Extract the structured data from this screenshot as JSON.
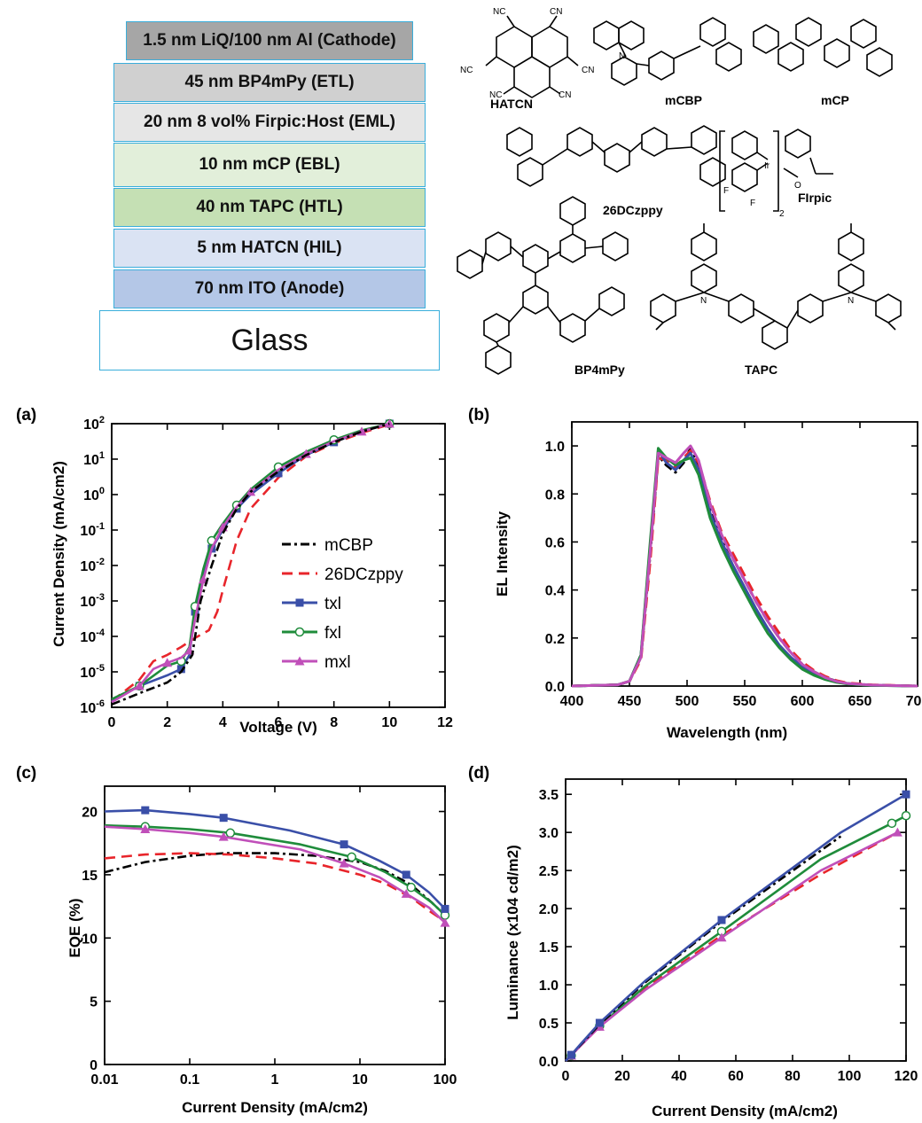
{
  "stack": {
    "layers": [
      {
        "label": "1.5 nm LiQ/100 nm Al (Cathode)",
        "color": "#a6a6a6"
      },
      {
        "label": "45 nm BP4mPy (ETL)",
        "color": "#d0d0d0"
      },
      {
        "label": "20 nm 8 vol% Firpic:Host (EML)",
        "color": "#e6e6e6"
      },
      {
        "label": "10 nm mCP (EBL)",
        "color": "#e2efda"
      },
      {
        "label": "40 nm TAPC (HTL)",
        "color": "#c5e0b4"
      },
      {
        "label": "5 nm HATCN (HIL)",
        "color": "#dae3f3"
      },
      {
        "label": "70 nm ITO (Anode)",
        "color": "#b4c7e7"
      },
      {
        "label": "Glass",
        "color": "#ffffff"
      }
    ]
  },
  "molecules": {
    "names": [
      "HATCN",
      "mCBP",
      "mCP",
      "26DCzppy",
      "FIrpic",
      "BP4mPy",
      "TAPC"
    ],
    "atom_labels": {
      "nc": "NC",
      "cn": "CN",
      "n": "N",
      "ir": "Ir",
      "f": "F",
      "o": "O",
      "sub2": "2"
    }
  },
  "legend_a": [
    "mCBP",
    "26DCzppy",
    "txl",
    "fxl",
    "mxl"
  ],
  "colors": {
    "mCBP": "#000000",
    "26DCzppy": "#e8252b",
    "txl": "#3a4fa8",
    "fxl": "#1f8c3b",
    "mxl": "#c04fb9"
  },
  "chart_data": [
    {
      "panel": "(a)",
      "type": "line",
      "xlabel": "Voltage (V)",
      "ylabel": "Current Density (mA/cm2)",
      "xlim": [
        0,
        12
      ],
      "ylim_log10": [
        -6,
        2
      ],
      "yscale": "log",
      "xticks": [
        "0",
        "2",
        "4",
        "6",
        "8",
        "10",
        "12"
      ],
      "yticks": [
        "10-6",
        "10-5",
        "10-4",
        "10-3",
        "10-2",
        "10-1",
        "100",
        "101",
        "102"
      ],
      "series": [
        {
          "name": "mCBP",
          "x": [
            0,
            1,
            2,
            2.5,
            2.9,
            3.2,
            3.6,
            4,
            4.5,
            5,
            6,
            7,
            8,
            9,
            10
          ],
          "y": [
            1.2e-06,
            2.5e-06,
            5e-06,
            1e-05,
            3e-05,
            0.001,
            0.01,
            0.08,
            0.4,
            1.2,
            4.5,
            13,
            30,
            60,
            100
          ]
        },
        {
          "name": "26DCzppy",
          "x": [
            0,
            1,
            1.5,
            2,
            2.5,
            3,
            3.5,
            3.8,
            4,
            4.5,
            5,
            6,
            7,
            8,
            9,
            10
          ],
          "y": [
            1.5e-06,
            6e-06,
            2e-05,
            3e-05,
            5e-05,
            9e-05,
            0.00015,
            0.0005,
            0.002,
            0.05,
            0.4,
            3,
            12,
            28,
            55,
            95
          ]
        },
        {
          "name": "txl",
          "x": [
            0,
            1,
            2,
            2.5,
            2.8,
            3,
            3.3,
            3.6,
            4,
            4.5,
            5,
            6,
            7,
            8,
            9,
            10
          ],
          "y": [
            1.5e-06,
            4e-06,
            8e-06,
            1.2e-05,
            3e-05,
            0.0005,
            0.005,
            0.03,
            0.1,
            0.4,
            1,
            4,
            13,
            30,
            60,
            100
          ]
        },
        {
          "name": "fxl",
          "x": [
            0,
            1,
            2,
            2.5,
            2.8,
            3,
            3.3,
            3.6,
            4,
            4.5,
            5,
            6,
            7,
            8,
            9,
            10
          ],
          "y": [
            1.7e-06,
            4e-06,
            1.5e-05,
            2e-05,
            5e-05,
            0.0007,
            0.008,
            0.05,
            0.15,
            0.5,
            1.4,
            6,
            16,
            35,
            65,
            100
          ]
        },
        {
          "name": "mxl",
          "x": [
            0,
            1,
            1.5,
            2,
            2.5,
            2.8,
            3,
            3.3,
            3.6,
            4,
            4.5,
            5,
            6,
            7,
            8,
            9,
            10
          ],
          "y": [
            1.4e-06,
            4e-06,
            1.2e-05,
            1.8e-05,
            2.5e-05,
            4e-05,
            0.0003,
            0.004,
            0.03,
            0.12,
            0.45,
            1.2,
            5,
            14,
            32,
            60,
            100
          ]
        }
      ]
    },
    {
      "panel": "(b)",
      "type": "line",
      "xlabel": "Wavelength (nm)",
      "ylabel": "EL Intensity",
      "xlim": [
        400,
        700
      ],
      "ylim": [
        0,
        1.1
      ],
      "xticks": [
        "400",
        "450",
        "500",
        "550",
        "600",
        "650",
        "700"
      ],
      "yticks": [
        "0.0",
        "0.2",
        "0.4",
        "0.6",
        "0.8",
        "1.0"
      ],
      "series": [
        {
          "name": "mCBP",
          "x": [
            400,
            440,
            450,
            460,
            468,
            475,
            482,
            490,
            497,
            503,
            510,
            520,
            530,
            540,
            550,
            560,
            570,
            580,
            590,
            600,
            610,
            620,
            630,
            640,
            660,
            700
          ],
          "y": [
            0,
            0.005,
            0.02,
            0.12,
            0.55,
            0.96,
            0.92,
            0.89,
            0.93,
            0.99,
            0.92,
            0.75,
            0.62,
            0.53,
            0.44,
            0.35,
            0.27,
            0.2,
            0.14,
            0.09,
            0.06,
            0.035,
            0.02,
            0.01,
            0.004,
            0
          ]
        },
        {
          "name": "26DCzppy",
          "x": [
            400,
            440,
            450,
            460,
            468,
            475,
            482,
            490,
            497,
            503,
            510,
            520,
            530,
            540,
            550,
            560,
            570,
            580,
            590,
            600,
            610,
            620,
            630,
            640,
            660,
            700
          ],
          "y": [
            0,
            0.005,
            0.02,
            0.11,
            0.52,
            0.95,
            0.94,
            0.91,
            0.95,
            0.98,
            0.93,
            0.77,
            0.64,
            0.55,
            0.46,
            0.37,
            0.29,
            0.22,
            0.15,
            0.1,
            0.065,
            0.04,
            0.022,
            0.012,
            0.005,
            0
          ]
        },
        {
          "name": "txl",
          "x": [
            400,
            440,
            450,
            460,
            468,
            475,
            482,
            490,
            497,
            503,
            510,
            520,
            530,
            540,
            550,
            560,
            570,
            580,
            590,
            600,
            610,
            620,
            630,
            640,
            660,
            700
          ],
          "y": [
            0,
            0.005,
            0.02,
            0.13,
            0.58,
            0.98,
            0.93,
            0.9,
            0.94,
            0.97,
            0.9,
            0.72,
            0.6,
            0.5,
            0.41,
            0.32,
            0.24,
            0.17,
            0.12,
            0.08,
            0.05,
            0.03,
            0.017,
            0.009,
            0.003,
            0
          ]
        },
        {
          "name": "fxl",
          "x": [
            400,
            440,
            450,
            460,
            468,
            475,
            482,
            490,
            497,
            503,
            510,
            520,
            530,
            540,
            550,
            560,
            570,
            580,
            590,
            600,
            610,
            620,
            630,
            640,
            660,
            700
          ],
          "y": [
            0,
            0.005,
            0.02,
            0.13,
            0.6,
            0.99,
            0.95,
            0.92,
            0.94,
            0.95,
            0.88,
            0.7,
            0.58,
            0.48,
            0.39,
            0.3,
            0.22,
            0.16,
            0.11,
            0.07,
            0.045,
            0.027,
            0.015,
            0.008,
            0.003,
            0
          ]
        },
        {
          "name": "mxl",
          "x": [
            400,
            440,
            450,
            460,
            468,
            475,
            482,
            490,
            497,
            503,
            510,
            520,
            530,
            540,
            550,
            560,
            570,
            580,
            590,
            600,
            610,
            620,
            630,
            640,
            660,
            700
          ],
          "y": [
            0,
            0.005,
            0.02,
            0.12,
            0.56,
            0.97,
            0.95,
            0.93,
            0.97,
            1.0,
            0.94,
            0.76,
            0.63,
            0.53,
            0.44,
            0.35,
            0.27,
            0.2,
            0.14,
            0.09,
            0.06,
            0.035,
            0.019,
            0.01,
            0.004,
            0
          ]
        }
      ]
    },
    {
      "panel": "(c)",
      "type": "line",
      "xlabel": "Current Density (mA/cm2)",
      "ylabel": "EQE (%)",
      "xscale": "log",
      "xlim_log10": [
        -2,
        2
      ],
      "ylim": [
        0,
        22
      ],
      "xticks": [
        "0.01",
        "0.1",
        "1",
        "10",
        "100"
      ],
      "yticks": [
        "0",
        "5",
        "10",
        "15",
        "20"
      ],
      "series": [
        {
          "name": "mCBP",
          "x": [
            0.01,
            0.03,
            0.1,
            0.25,
            1,
            3,
            10,
            20,
            40,
            70,
            100
          ],
          "y": [
            15.2,
            16.0,
            16.5,
            16.7,
            16.7,
            16.5,
            16.0,
            15.3,
            14.2,
            12.8,
            11.8
          ]
        },
        {
          "name": "26DCzppy",
          "x": [
            0.01,
            0.03,
            0.1,
            0.3,
            1,
            3,
            10,
            20,
            40,
            70,
            100
          ],
          "y": [
            16.3,
            16.6,
            16.7,
            16.6,
            16.3,
            15.9,
            15.0,
            14.3,
            13.2,
            12.0,
            11.3
          ]
        },
        {
          "name": "txl",
          "x": [
            0.01,
            0.03,
            0.1,
            0.25,
            1.5,
            6.5,
            17,
            35,
            65,
            100
          ],
          "y": [
            20.0,
            20.1,
            19.8,
            19.5,
            18.5,
            17.4,
            16.1,
            15.0,
            13.6,
            12.3
          ]
        },
        {
          "name": "fxl",
          "x": [
            0.01,
            0.03,
            0.1,
            0.3,
            2,
            8,
            20,
            40,
            70,
            100
          ],
          "y": [
            18.9,
            18.8,
            18.6,
            18.3,
            17.4,
            16.4,
            15.2,
            14.0,
            12.8,
            11.8
          ]
        },
        {
          "name": "mxl",
          "x": [
            0.01,
            0.03,
            0.1,
            0.25,
            2,
            6.5,
            17,
            35,
            65,
            100
          ],
          "y": [
            18.8,
            18.6,
            18.3,
            18.0,
            17.0,
            15.9,
            14.8,
            13.5,
            12.4,
            11.2
          ]
        }
      ]
    },
    {
      "panel": "(d)",
      "type": "line",
      "xlabel": "Current Density (mA/cm2)",
      "ylabel": "Luminance (x104 cd/m2)",
      "xlim": [
        0,
        120
      ],
      "ylim": [
        0,
        3.7
      ],
      "xticks": [
        "0",
        "20",
        "40",
        "60",
        "80",
        "100",
        "120"
      ],
      "yticks": [
        "0.0",
        "0.5",
        "1.0",
        "1.5",
        "2.0",
        "2.5",
        "3.0",
        "3.5"
      ],
      "series": [
        {
          "name": "mCBP",
          "x": [
            0,
            2,
            5,
            12,
            28,
            55,
            97
          ],
          "y": [
            0,
            0.08,
            0.2,
            0.48,
            1.03,
            1.83,
            2.95
          ]
        },
        {
          "name": "26DCzppy",
          "x": [
            0,
            2,
            5,
            12,
            28,
            55,
            90,
            117
          ],
          "y": [
            0,
            0.07,
            0.19,
            0.45,
            0.95,
            1.65,
            2.45,
            3.0
          ]
        },
        {
          "name": "txl",
          "x": [
            0,
            2,
            5,
            12,
            28,
            55,
            97,
            120
          ],
          "y": [
            0,
            0.08,
            0.21,
            0.5,
            1.05,
            1.85,
            3.0,
            3.5
          ]
        },
        {
          "name": "fxl",
          "x": [
            0,
            2,
            5,
            12,
            28,
            55,
            90,
            115,
            120
          ],
          "y": [
            0,
            0.07,
            0.2,
            0.46,
            0.98,
            1.7,
            2.65,
            3.12,
            3.22
          ]
        },
        {
          "name": "mxl",
          "x": [
            0,
            2,
            5,
            12,
            28,
            55,
            90,
            117
          ],
          "y": [
            0,
            0.07,
            0.19,
            0.45,
            0.93,
            1.62,
            2.5,
            3.0
          ]
        }
      ]
    }
  ]
}
